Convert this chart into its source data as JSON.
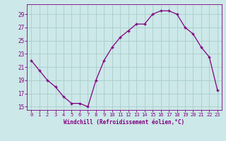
{
  "x": [
    0,
    1,
    2,
    3,
    4,
    5,
    6,
    7,
    8,
    9,
    10,
    11,
    12,
    13,
    14,
    15,
    16,
    17,
    18,
    19,
    20,
    21,
    22,
    23
  ],
  "y": [
    22,
    20.5,
    19,
    18,
    16.5,
    15.5,
    15.5,
    15,
    19,
    22,
    24,
    25.5,
    26.5,
    27.5,
    27.5,
    29,
    29.5,
    29.5,
    29,
    27,
    26,
    24,
    22.5,
    17.5
  ],
  "line_color": "#800080",
  "marker": "+",
  "bg_color": "#cce8e8",
  "grid_color": "#aacccc",
  "xlabel": "Windchill (Refroidissement éolien,°C)",
  "ylabel": "",
  "xlim": [
    -0.5,
    23.5
  ],
  "ylim": [
    14.5,
    30.5
  ],
  "yticks": [
    15,
    17,
    19,
    21,
    23,
    25,
    27,
    29
  ],
  "xticks": [
    0,
    1,
    2,
    3,
    4,
    5,
    6,
    7,
    8,
    9,
    10,
    11,
    12,
    13,
    14,
    15,
    16,
    17,
    18,
    19,
    20,
    21,
    22,
    23
  ],
  "text_color": "#800080",
  "figsize": [
    3.2,
    2.0
  ],
  "dpi": 100
}
